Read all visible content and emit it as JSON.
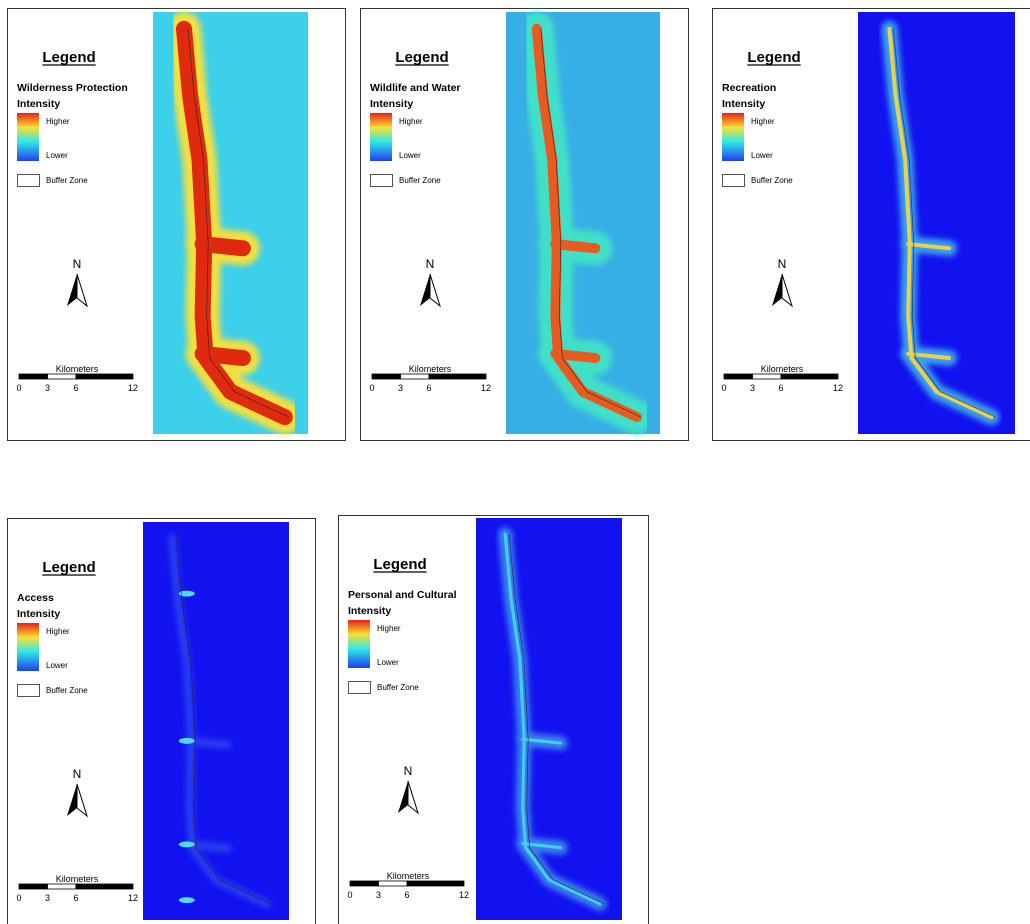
{
  "panels": [
    {
      "legend": "Legend",
      "title": "Wilderness Protection",
      "intensity": "Intensity",
      "higher": "Higher",
      "lower": "Lower",
      "buffer": "Buffer Zone",
      "north": "N",
      "scale_title": "Kilometers",
      "scale_ticks": [
        0,
        3,
        6,
        12
      ]
    },
    {
      "legend": "Legend",
      "title": "Wildlife and Water",
      "intensity": "Intensity",
      "higher": "Higher",
      "lower": "Lower",
      "buffer": "Buffer Zone",
      "north": "N",
      "scale_title": "Kilometers",
      "scale_ticks": [
        0,
        3,
        6,
        12
      ]
    },
    {
      "legend": "Legend",
      "title": "Recreation",
      "intensity": "Intensity",
      "higher": "Higher",
      "lower": "Lower",
      "buffer": "Buffer Zone",
      "north": "N",
      "scale_title": "Kilometers",
      "scale_ticks": [
        0,
        3,
        6,
        12
      ]
    },
    {
      "legend": "Legend",
      "title": "Access",
      "intensity": "Intensity",
      "higher": "Higher",
      "lower": "Lower",
      "buffer": "Buffer Zone",
      "north": "N",
      "scale_title": "Kilometers",
      "scale_ticks": [
        0,
        3,
        6,
        12
      ]
    },
    {
      "legend": "Legend",
      "title": "Personal and Cultural",
      "intensity": "Intensity",
      "higher": "Higher",
      "lower": "Lower",
      "buffer": "Buffer Zone",
      "north": "N",
      "scale_title": "Kilometers",
      "scale_ticks": [
        0,
        3,
        6,
        12
      ]
    }
  ]
}
